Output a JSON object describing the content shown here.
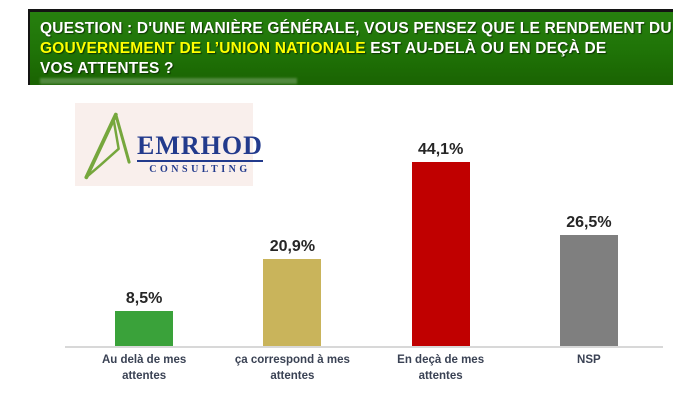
{
  "banner": {
    "line1": "QUESTION : D'UNE MANIÈRE GÉNÉRALE, VOUS PENSEZ QUE LE RENDEMENT DU",
    "line2_highlight": "GOUVERNEMENT DE L’UNION NATIONALE",
    "line2_rest": " EST AU-DELÀ OU EN DEÇÀ DE",
    "line3": "VOS ATTENTES ?",
    "bg_color": "#1f7307",
    "text_color": "#ffffff",
    "highlight_color": "#ffff00"
  },
  "logo": {
    "name": "EMRHOD",
    "subtitle": "CONSULTING",
    "mark": "green-mountain-triangle",
    "text_color": "#223a8c",
    "mark_color": "#76a73d",
    "bg_color": "#f9efec"
  },
  "chart_data": {
    "type": "bar",
    "title": "",
    "xlabel": "",
    "ylabel": "",
    "unit": "%",
    "ylim": [
      0,
      50
    ],
    "grid": false,
    "legend": false,
    "baseline_color": "#d8d8d8",
    "categories": [
      "Au delà de mes attentes",
      "ça correspond à mes attentes",
      "En deçà de mes attentes",
      "NSP"
    ],
    "values": [
      8.5,
      20.9,
      44.1,
      26.5
    ],
    "value_labels": [
      "8,5%",
      "20,9%",
      "44,1%",
      "26,5%"
    ],
    "bar_colors": [
      "#3aa23a",
      "#c9b45b",
      "#c00000",
      "#7f7f7f"
    ]
  }
}
